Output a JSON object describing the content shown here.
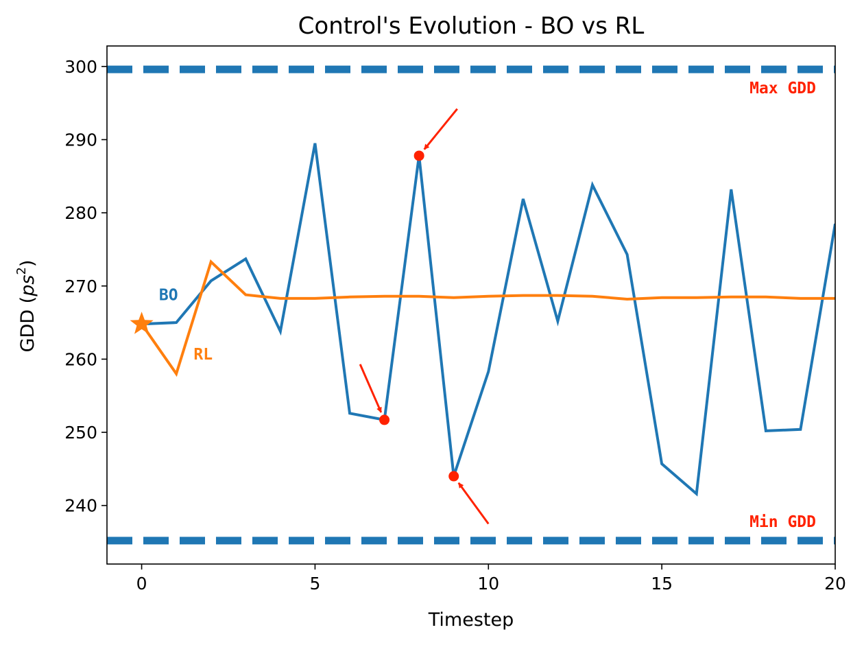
{
  "chart_data": {
    "type": "line",
    "title": "Control's Evolution - BO vs RL",
    "xlabel": "Timestep",
    "ylabel": "GDD (ps²)",
    "xlim": [
      -1,
      20
    ],
    "ylim": [
      232,
      302.8
    ],
    "xticks": [
      0,
      5,
      10,
      15,
      20
    ],
    "yticks": [
      240,
      250,
      260,
      270,
      280,
      290,
      300
    ],
    "grid": false,
    "x": [
      0,
      1,
      2,
      3,
      4,
      5,
      6,
      7,
      8,
      9,
      10,
      11,
      12,
      13,
      14,
      15,
      16,
      17,
      18,
      19,
      20
    ],
    "series": [
      {
        "name": "BO",
        "color": "#1f77b4",
        "values": [
          264.8,
          265.0,
          270.7,
          273.7,
          263.8,
          289.5,
          252.6,
          251.7,
          287.8,
          244.0,
          258.3,
          281.9,
          265.2,
          283.8,
          274.3,
          245.7,
          241.6,
          283.2,
          250.2,
          250.4,
          278.5
        ]
      },
      {
        "name": "RL",
        "color": "#ff7f0e",
        "values": [
          264.8,
          258.0,
          273.3,
          268.8,
          268.3,
          268.3,
          268.5,
          268.6,
          268.6,
          268.4,
          268.6,
          268.7,
          268.7,
          268.6,
          268.2,
          268.4,
          268.4,
          268.5,
          268.5,
          268.3,
          268.3
        ]
      }
    ],
    "start_marker": {
      "x": 0,
      "y": 264.8,
      "shape": "star",
      "color": "#ff7f0e"
    },
    "limits": [
      {
        "label": "Max GDD",
        "y": 299.6,
        "color": "#1f77b4",
        "label_color": "#ff2200"
      },
      {
        "label": "Min GDD",
        "y": 235.2,
        "color": "#1f77b4",
        "label_color": "#ff2200"
      }
    ],
    "series_labels": [
      {
        "text": "BO",
        "x": 0.5,
        "y": 268.8,
        "color": "#1f77b4"
      },
      {
        "text": "RL",
        "x": 1.5,
        "y": 260.7,
        "color": "#ff7f0e"
      }
    ],
    "highlights": [
      {
        "x": 7,
        "y": 251.7,
        "arrow_from": [
          6.3,
          259.3
        ],
        "color": "#ff2200"
      },
      {
        "x": 8,
        "y": 287.8,
        "arrow_from": [
          9.1,
          294.2
        ],
        "color": "#ff2200"
      },
      {
        "x": 9,
        "y": 244.0,
        "arrow_from": [
          10.0,
          237.5
        ],
        "color": "#ff2200"
      }
    ]
  }
}
